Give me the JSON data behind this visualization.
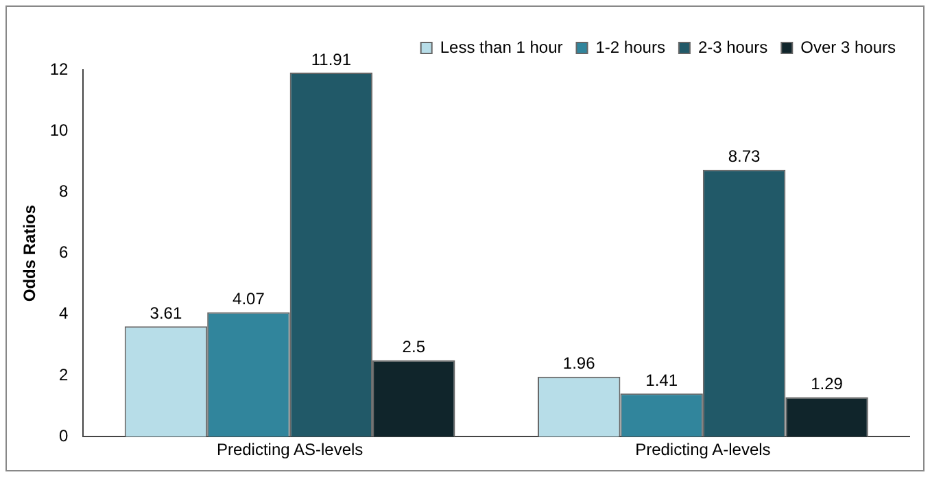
{
  "chart_data": {
    "type": "bar",
    "ylabel": "Odds Ratios",
    "categories": [
      "Predicting AS-levels",
      "Predicting A-levels"
    ],
    "series": [
      {
        "name": "Less than 1 hour",
        "color": "#b7dde8",
        "values": [
          3.61,
          1.96
        ]
      },
      {
        "name": "1-2 hours",
        "color": "#31859c",
        "values": [
          4.07,
          1.41
        ]
      },
      {
        "name": "2-3 hours",
        "color": "#215968",
        "values": [
          11.91,
          8.73
        ]
      },
      {
        "name": "Over 3 hours",
        "color": "#10252b",
        "values": [
          2.5,
          1.29
        ]
      }
    ],
    "ylim": [
      0,
      12
    ],
    "yticks": [
      0,
      2,
      4,
      6,
      8,
      10,
      12
    ],
    "grid": false,
    "legend": "top right",
    "data_labels": true
  }
}
